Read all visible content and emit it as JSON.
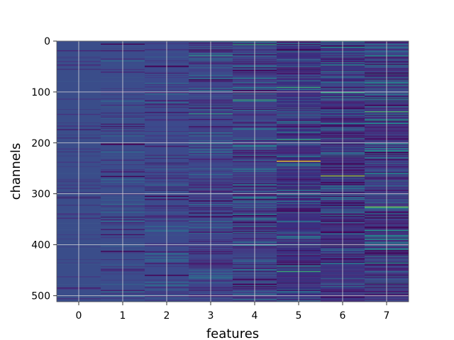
{
  "chart_data": {
    "type": "heatmap",
    "title": "",
    "xlabel": "features",
    "ylabel": "channels",
    "x_ticks": [
      "0",
      "1",
      "2",
      "3",
      "4",
      "5",
      "6",
      "7"
    ],
    "y_ticks": [
      "0",
      "100",
      "200",
      "300",
      "400",
      "500"
    ],
    "x_range": [
      -0.5,
      7.5
    ],
    "y_range": [
      0,
      512
    ],
    "n_rows": 512,
    "n_cols": 8,
    "y_inverted": true,
    "grid": true,
    "colormap": "viridis",
    "column_background": [
      "#3a4d8a",
      "#3b4c8b",
      "#3c4a8c",
      "#3e468b",
      "#3f4288",
      "#3a2f80",
      "#3b3582",
      "#3d4389"
    ],
    "highlights": [
      {
        "feature": 5,
        "channel": 235,
        "color": "#fde725"
      },
      {
        "feature": 6,
        "channel": 264,
        "color": "#a0da39"
      },
      {
        "feature": 7,
        "channel": 325,
        "color": "#7ad151"
      },
      {
        "feature": 7,
        "channel": 138,
        "color": "#4ac16d"
      },
      {
        "feature": 5,
        "channel": 90,
        "color": "#35b779"
      },
      {
        "feature": 4,
        "channel": 115,
        "color": "#35b779"
      },
      {
        "feature": 5,
        "channel": 452,
        "color": "#35b779"
      },
      {
        "feature": 6,
        "channel": 100,
        "color": "#29af7f"
      },
      {
        "feature": 4,
        "channel": 6,
        "color": "#29af7f"
      },
      {
        "feature": 3,
        "channel": 28,
        "color": "#2a9d8a"
      },
      {
        "feature": 3,
        "channel": 142,
        "color": "#2a9d8a"
      },
      {
        "feature": 5,
        "channel": 193,
        "color": "#2db27d"
      }
    ],
    "colors": {
      "grid": "#d8d8d8",
      "spine": "#555555",
      "text": "#000000"
    }
  }
}
